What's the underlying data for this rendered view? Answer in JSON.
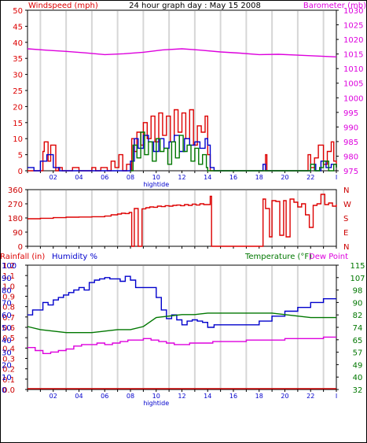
{
  "header": {
    "left_label": "Windspeed (mph)",
    "title": "24 hour graph day : May 15 2008",
    "right_label": "Barometer (mb)"
  },
  "colors": {
    "red": "#dd0000",
    "darkred": "#cc0000",
    "blue": "#0000cc",
    "green": "#007700",
    "magenta": "#dd00dd",
    "grid": "#d6d6d6",
    "frame": "#000000"
  },
  "chart_data": [
    {
      "id": "wind",
      "type": "line",
      "left_axis": {
        "label": "Windspeed (mph)",
        "range": [
          0,
          50
        ],
        "ticks": [
          "0",
          "5",
          "10",
          "15",
          "20",
          "25",
          "30",
          "35",
          "40",
          "45",
          "50"
        ]
      },
      "right_axis": {
        "label": "Barometer (mb)",
        "range": [
          975,
          1030
        ],
        "ticks": [
          "975",
          "980",
          "985",
          "990",
          "995",
          "1000",
          "1005",
          "1010",
          "1015",
          "1020",
          "1025",
          "1030"
        ]
      },
      "x_labels": [
        "02",
        "04",
        "06",
        "08",
        "10",
        "12",
        "14",
        "16",
        "18",
        "20",
        "22"
      ],
      "x_note": "hightide",
      "series": [
        {
          "color": "#dd0000",
          "axis": "left",
          "x": [
            0,
            0.9,
            1.2,
            1.3,
            1.6,
            1.8,
            2.2,
            2.4,
            2.7,
            3.2,
            3.5,
            4.0,
            4.5,
            5.0,
            5.3,
            5.7,
            6.2,
            6.5,
            6.8,
            7.1,
            7.4,
            7.7,
            8.0,
            8.1,
            8.3,
            8.5,
            8.8,
            9.0,
            9.3,
            9.6,
            9.9,
            10.2,
            10.5,
            10.8,
            11.1,
            11.4,
            11.7,
            12.0,
            12.3,
            12.6,
            12.9,
            13.2,
            13.5,
            13.8,
            14.0,
            14.2,
            14.5,
            17.0,
            18.4,
            18.5,
            18.6,
            18.8,
            20.0,
            21.7,
            21.8,
            22.0,
            22.3,
            22.6,
            23.0,
            23.3,
            23.6,
            23.8,
            24.0
          ],
          "y": [
            0,
            0,
            6,
            9,
            3,
            8,
            0,
            1,
            0,
            0,
            1,
            0,
            0,
            1,
            0,
            1,
            0,
            3,
            1,
            5,
            0,
            2,
            0,
            10,
            6,
            12,
            8,
            15,
            10,
            17,
            9,
            18,
            11,
            17,
            9,
            19,
            12,
            18,
            10,
            19,
            8,
            14,
            12,
            17,
            5,
            0,
            0,
            0,
            0,
            5,
            0,
            0,
            0,
            0,
            5,
            1,
            4,
            8,
            2,
            6,
            9,
            3,
            1
          ]
        },
        {
          "color": "#0000cc",
          "axis": "left",
          "x": [
            0,
            0.5,
            1.0,
            1.5,
            2.0,
            2.5,
            7.8,
            8.0,
            8.3,
            8.6,
            9.0,
            9.4,
            9.8,
            10.2,
            10.6,
            11.0,
            11.4,
            11.8,
            12.2,
            12.6,
            13.0,
            13.4,
            13.8,
            14.0,
            14.2,
            14.5,
            18.0,
            18.3,
            18.5,
            20.0,
            21.8,
            22.0,
            22.4,
            22.8,
            23.2,
            23.6,
            24.0
          ],
          "y": [
            1,
            0,
            3,
            5,
            1,
            0,
            0,
            3,
            10,
            7,
            11,
            9,
            6,
            10,
            7,
            9,
            11,
            6,
            10,
            8,
            9,
            7,
            10,
            8,
            1,
            0,
            0,
            2,
            0,
            0,
            0,
            2,
            0,
            3,
            1,
            2,
            1
          ]
        },
        {
          "color": "#007700",
          "axis": "left",
          "x": [
            8.0,
            8.2,
            8.5,
            8.8,
            9.1,
            9.4,
            9.7,
            10.0,
            10.3,
            10.6,
            10.9,
            11.2,
            11.5,
            11.8,
            12.1,
            12.4,
            12.7,
            13.0,
            13.3,
            13.6,
            13.9,
            14.0,
            14.2,
            14.5,
            20.0,
            21.8,
            22.0,
            22.3,
            22.7,
            23.0,
            23.4,
            23.8,
            24.0
          ],
          "y": [
            0,
            8,
            4,
            12,
            5,
            9,
            3,
            10,
            6,
            7,
            2,
            9,
            4,
            11,
            6,
            8,
            3,
            7,
            2,
            5,
            1,
            0,
            0,
            0,
            0,
            0,
            2,
            0,
            1,
            3,
            0,
            2,
            1
          ]
        },
        {
          "color": "#dd00dd",
          "axis": "right",
          "x": [
            0,
            1.5,
            3,
            4.5,
            6,
            7.5,
            9,
            10.5,
            12,
            13.5,
            15,
            16.5,
            18,
            19.5,
            21,
            22.5,
            24
          ],
          "y": [
            1016.8,
            1016.3,
            1015.9,
            1015.4,
            1014.8,
            1015.1,
            1015.6,
            1016.4,
            1016.8,
            1016.3,
            1015.7,
            1015.3,
            1014.8,
            1014.9,
            1014.6,
            1014.3,
            1014.0
          ]
        }
      ]
    },
    {
      "id": "direction",
      "type": "line",
      "left_axis": {
        "range": [
          0,
          360
        ],
        "ticks": [
          "0",
          "90",
          "180",
          "270",
          "360"
        ]
      },
      "right_axis": {
        "ticks": [
          "N",
          "W",
          "S",
          "E",
          "N"
        ]
      },
      "series": [
        {
          "color": "#dd0000",
          "x": [
            0,
            1.0,
            2.0,
            3.0,
            4.0,
            5.0,
            6.0,
            6.5,
            7.0,
            7.3,
            7.6,
            7.9,
            8.1,
            8.3,
            8.6,
            8.9,
            9.2,
            9.5,
            9.8,
            10.1,
            10.4,
            10.7,
            11.0,
            11.3,
            11.6,
            11.9,
            12.2,
            12.5,
            12.8,
            13.1,
            13.4,
            13.7,
            14.0,
            14.2,
            14.3,
            14.5,
            15.0,
            16.0,
            17.0,
            18.0,
            18.2,
            18.3,
            18.5,
            18.8,
            19.0,
            19.3,
            19.6,
            19.9,
            20.1,
            20.4,
            20.7,
            21.0,
            21.3,
            21.6,
            21.9,
            22.2,
            22.5,
            22.8,
            23.1,
            23.4,
            23.7,
            24.0
          ],
          "y": [
            175,
            178,
            182,
            185,
            186,
            188,
            192,
            200,
            205,
            210,
            208,
            215,
            0,
            240,
            0,
            238,
            245,
            250,
            248,
            255,
            252,
            258,
            255,
            260,
            262,
            258,
            265,
            260,
            268,
            262,
            270,
            265,
            265,
            318,
            0,
            0,
            0,
            0,
            0,
            0,
            0,
            300,
            240,
            60,
            290,
            285,
            70,
            290,
            60,
            300,
            280,
            250,
            270,
            200,
            120,
            260,
            270,
            330,
            265,
            275,
            255,
            265
          ]
        }
      ]
    },
    {
      "id": "humidity_temp",
      "type": "line",
      "left_axis": {
        "label_rain": "Rainfall (in)",
        "label_hum": "Humidity %",
        "rain_ticks": [
          "0.0",
          "0.1",
          "0.2",
          "0.3",
          "0.4",
          "0.5",
          "0.6",
          "0.7",
          "0.8",
          "0.9",
          "1.0",
          "1.1",
          "1.2"
        ],
        "hum_ticks": [
          "0",
          "10",
          "20",
          "30",
          "40",
          "50",
          "60",
          "70",
          "80",
          "90",
          "100"
        ]
      },
      "right_axis": {
        "label_temp": "Temperature (°F)",
        "label_dew": "Dew Point",
        "ticks": [
          "32",
          "40",
          "49",
          "57",
          "65",
          "74",
          "82",
          "90",
          "98",
          "107",
          "115"
        ]
      },
      "series": [
        {
          "color": "#0000cc",
          "name": "Humidity %",
          "x": [
            0,
            0.4,
            0.8,
            1.2,
            1.6,
            2.0,
            2.4,
            2.8,
            3.2,
            3.6,
            4.0,
            4.4,
            4.8,
            5.2,
            5.6,
            6.0,
            6.4,
            6.8,
            7.2,
            7.6,
            8.0,
            8.4,
            8.8,
            9.2,
            9.6,
            10.0,
            10.4,
            10.8,
            11.2,
            11.6,
            12.0,
            12.4,
            12.8,
            13.2,
            13.6,
            14.0,
            14.5,
            15,
            16,
            17,
            18,
            19,
            20,
            21,
            22,
            23,
            24
          ],
          "y": [
            60,
            64,
            64,
            70,
            68,
            72,
            74,
            76,
            78,
            80,
            82,
            80,
            86,
            88,
            89,
            90,
            89,
            89,
            87,
            91,
            88,
            82,
            82,
            82,
            82,
            74,
            64,
            57,
            60,
            56,
            52,
            55,
            56,
            55,
            54,
            50,
            52,
            52,
            52,
            52,
            55,
            59,
            63,
            66,
            70,
            73,
            73
          ]
        },
        {
          "color": "#007700",
          "name": "Temperature (°F)",
          "x": [
            0,
            1,
            2,
            3,
            4,
            5,
            6,
            7,
            8,
            9,
            10,
            11,
            12,
            13,
            14,
            15,
            16,
            17,
            18,
            19,
            20,
            21,
            22,
            23,
            24
          ],
          "y": [
            74,
            72,
            71,
            70,
            70,
            70,
            71,
            72,
            72,
            74,
            80,
            81,
            82,
            82,
            83,
            83,
            83,
            83,
            83,
            83,
            82,
            81,
            80,
            80,
            80
          ]
        },
        {
          "color": "#dd00dd",
          "name": "Dew Point",
          "x": [
            0,
            0.6,
            1.2,
            1.8,
            2.4,
            3.0,
            3.6,
            4.2,
            4.8,
            5.4,
            6.0,
            6.6,
            7.2,
            7.8,
            8.4,
            9.0,
            9.6,
            10.2,
            10.8,
            11.4,
            12.0,
            12.6,
            13.2,
            13.8,
            14.4,
            15,
            16,
            17,
            18,
            19,
            20,
            21,
            22,
            23,
            24
          ],
          "y": [
            60,
            58,
            56,
            57,
            58,
            59,
            61,
            62,
            62,
            63,
            62,
            63,
            64,
            65,
            65,
            66,
            65,
            64,
            63,
            62,
            62,
            63,
            63,
            63,
            64,
            64,
            64,
            65,
            65,
            65,
            66,
            66,
            66,
            67,
            67
          ]
        },
        {
          "color": "#cc0000",
          "name": "Rainfall (in)",
          "x": [
            0,
            24
          ],
          "y": [
            0,
            0
          ]
        }
      ],
      "x_labels": [
        "02",
        "04",
        "06",
        "08",
        "10",
        "12",
        "14",
        "16",
        "18",
        "20",
        "22"
      ],
      "x_note": "hightide"
    }
  ]
}
